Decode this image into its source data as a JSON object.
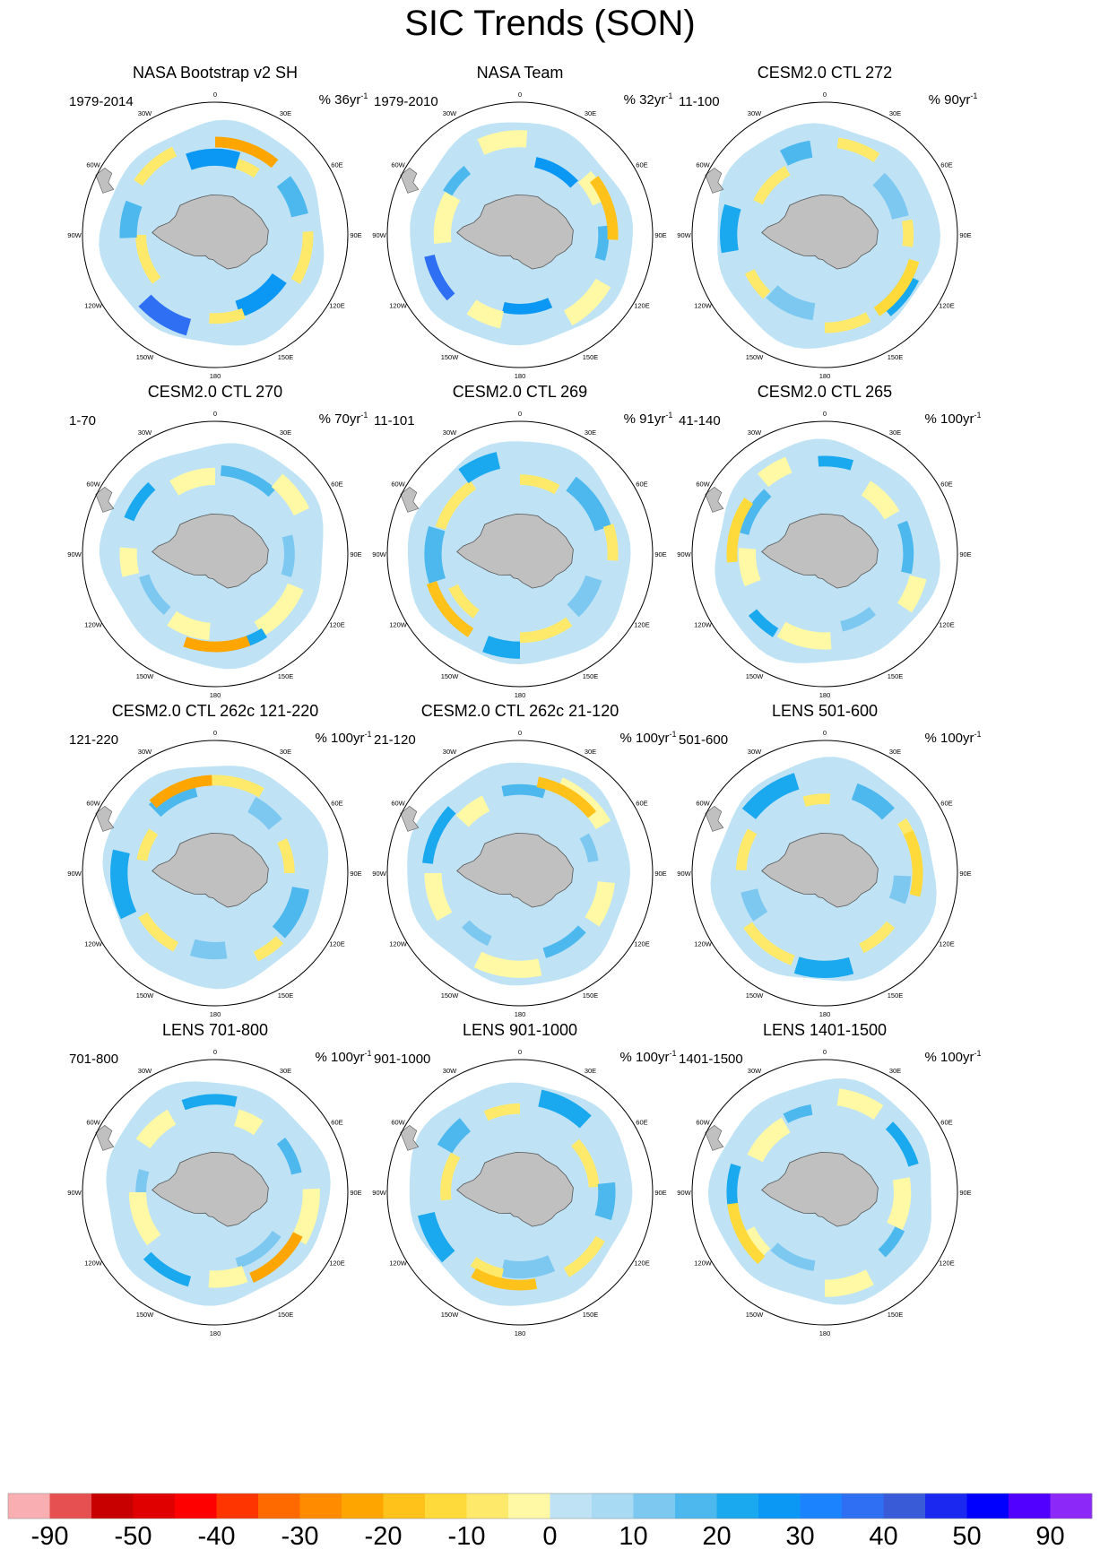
{
  "title": "SIC Trends (SON)",
  "map_labels": {
    "longitudes": [
      "0",
      "30E",
      "60E",
      "90E",
      "120E",
      "150E",
      "180",
      "150W",
      "120W",
      "90W",
      "60W",
      "30W"
    ]
  },
  "colors": {
    "land": "#c0c0c0",
    "ring": "#000000",
    "palette": [
      "#f9aeb1",
      "#e65050",
      "#c80000",
      "#e10000",
      "#ff0000",
      "#ff3500",
      "#ff6a00",
      "#ff8c00",
      "#ffa500",
      "#ffc21a",
      "#ffda3a",
      "#ffe96a",
      "#fff8a5",
      "#bfe3f5",
      "#a8daf3",
      "#7dc8f0",
      "#4cb8ee",
      "#1aa8ee",
      "#0b98f5",
      "#1c83ff",
      "#2f6ff3",
      "#3a5bd8",
      "#1b28f0",
      "#0000ff",
      "#5100ff",
      "#8c28f8"
    ]
  },
  "chart_data": {
    "type": "polar-stereographic-map-grid",
    "colorbar": {
      "ticks": [
        "-90",
        "-50",
        "-40",
        "-30",
        "-20",
        "-10",
        "0",
        "10",
        "20",
        "30",
        "40",
        "50",
        "90"
      ]
    },
    "panels": [
      {
        "title": "NASA Bootstrap v2 SH",
        "period": "1979-2014",
        "scale": "% 36yr",
        "pattern": "obs"
      },
      {
        "title": "NASA Team",
        "period": "1979-2010",
        "scale": "% 32yr",
        "pattern": "obs"
      },
      {
        "title": "CESM2.0 CTL 272",
        "period": "11-100",
        "scale": "% 90yr",
        "pattern": "model"
      },
      {
        "title": "CESM2.0 CTL 270",
        "period": "1-70",
        "scale": "% 70yr",
        "pattern": "model"
      },
      {
        "title": "CESM2.0 CTL 269",
        "period": "11-101",
        "scale": "% 91yr",
        "pattern": "model"
      },
      {
        "title": "CESM2.0 CTL 265",
        "period": "41-140",
        "scale": "% 100yr",
        "pattern": "model"
      },
      {
        "title": "CESM2.0 CTL 262c 121-220",
        "period": "121-220",
        "scale": "% 100yr",
        "pattern": "model"
      },
      {
        "title": "CESM2.0 CTL 262c 21-120",
        "period": "21-120",
        "scale": "% 100yr",
        "pattern": "model"
      },
      {
        "title": "LENS 501-600",
        "period": "501-600",
        "scale": "% 100yr",
        "pattern": "model"
      },
      {
        "title": "LENS 701-800",
        "period": "701-800",
        "scale": "% 100yr",
        "pattern": "model"
      },
      {
        "title": "LENS 901-1000",
        "period": "901-1000",
        "scale": "% 100yr",
        "pattern": "model"
      },
      {
        "title": "LENS 1401-1500",
        "period": "1401-1500",
        "scale": "% 100yr",
        "pattern": "model"
      }
    ]
  }
}
